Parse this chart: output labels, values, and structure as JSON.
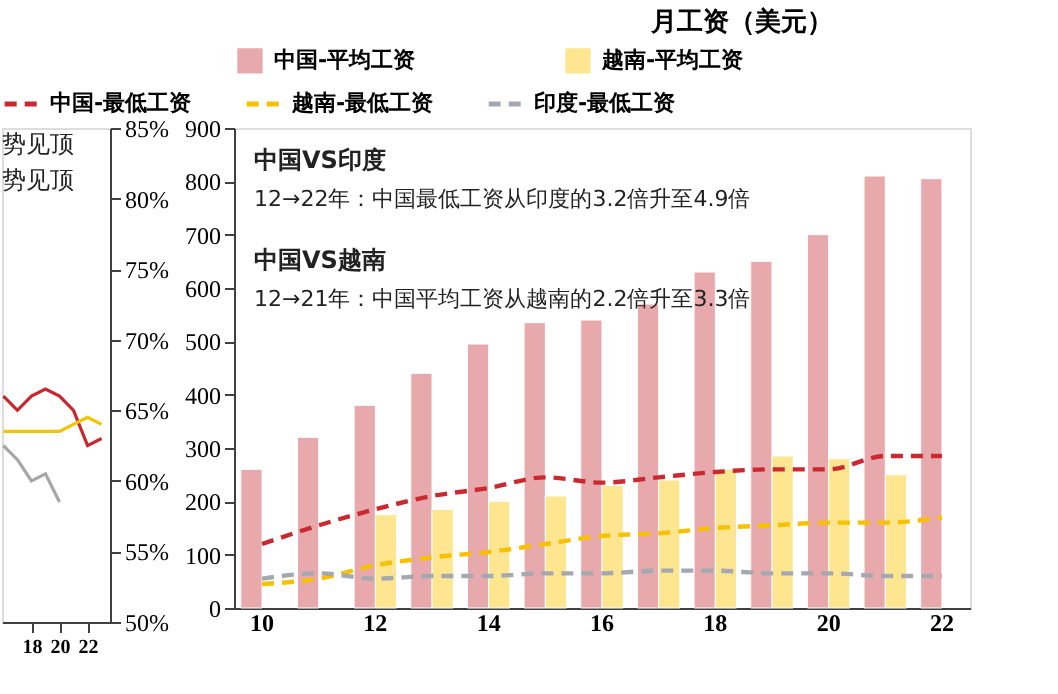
{
  "chart_data": [
    {
      "type": "line",
      "x": [
        16,
        17,
        18,
        19,
        20,
        21,
        22,
        23
      ],
      "series": [
        {
          "color": "#c8282d",
          "values": [
            66,
            65,
            66,
            66.5,
            66,
            65,
            62.5,
            63
          ]
        },
        {
          "color": "#f5c400",
          "values": [
            63.5,
            63.5,
            63.5,
            63.5,
            63.5,
            64,
            64.5,
            64
          ]
        },
        {
          "color": "#a6a6a6",
          "values": [
            62.5,
            61.5,
            60,
            60.5,
            58.5,
            null,
            null,
            null
          ]
        }
      ],
      "xlim": [
        15.9,
        23.6
      ],
      "xticks": [
        18,
        20,
        22
      ],
      "ylim": [
        50,
        85
      ],
      "yticks": [
        {
          "value": 50,
          "label": "50%"
        },
        {
          "value": 55,
          "label": "55%"
        },
        {
          "value": 60,
          "label": "60%"
        },
        {
          "value": 65,
          "label": "65%"
        },
        {
          "value": 70,
          "label": "70%"
        },
        {
          "value": 75,
          "label": "75%"
        },
        {
          "value": 80,
          "label": "80%"
        },
        {
          "value": 85,
          "label": "85%"
        }
      ],
      "annotations": [
        "势见顶",
        "势见顶"
      ],
      "grid": false,
      "legend": false
    },
    {
      "type": "bar",
      "title": "月工资（美元）",
      "categories": [
        "10",
        null,
        "12",
        null,
        "14",
        null,
        "16",
        null,
        "18",
        null,
        "20",
        null,
        "22"
      ],
      "series": [
        {
          "name": "中国-平均工资",
          "color": "#e8a9ac",
          "values": [
            260,
            320,
            380,
            440,
            495,
            535,
            540,
            570,
            630,
            650,
            700,
            810,
            805
          ]
        },
        {
          "name": "越南-平均工资",
          "color": "#fde68f",
          "values": [
            null,
            null,
            175,
            185,
            200,
            210,
            230,
            240,
            260,
            285,
            280,
            250,
            null
          ]
        },
        {
          "name": "中国-最低工资",
          "type": "line",
          "line_style": "dashed",
          "color": "#c9292f",
          "values": [
            120,
            155,
            185,
            210,
            225,
            245,
            235,
            245,
            255,
            260,
            260,
            285,
            285
          ]
        },
        {
          "name": "越南-最低工资",
          "type": "line",
          "line_style": "dashed",
          "color": "#f7c000",
          "values": [
            45,
            55,
            80,
            95,
            105,
            120,
            135,
            140,
            150,
            155,
            160,
            160,
            170
          ]
        },
        {
          "name": "印度-最低工资",
          "type": "line",
          "line_style": "dashed",
          "color": "#a4a8b0",
          "values": [
            55,
            65,
            55,
            60,
            60,
            65,
            65,
            70,
            70,
            65,
            65,
            60,
            60
          ]
        }
      ],
      "ylim": [
        0,
        900
      ],
      "yticks": [
        0,
        100,
        200,
        300,
        400,
        500,
        600,
        700,
        800,
        900
      ],
      "annotations": [
        "中国VS印度",
        "12→22年：中国最低工资从印度的3.2倍升至4.9倍",
        "中国VS越南",
        "12→21年：中国平均工资从越南的2.2倍升至3.3倍"
      ],
      "grid": false,
      "legend": "top"
    }
  ]
}
